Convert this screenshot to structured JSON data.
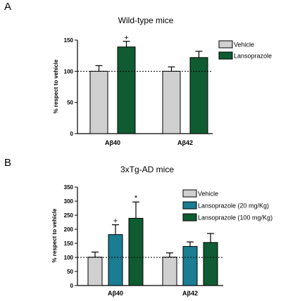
{
  "chart_data": [
    {
      "type": "bar",
      "panel": "A",
      "title": "Wild-type mice",
      "ylabel": "% respect to vehicle",
      "ylim": [
        0,
        150
      ],
      "yticks": [
        0,
        50,
        100,
        150
      ],
      "reference_line": 100,
      "categories": [
        "Aβ40",
        "Aβ42"
      ],
      "series": [
        {
          "name": "Vehicle",
          "color": "#d0d0d0",
          "values": [
            100,
            100
          ],
          "errors": [
            9,
            7
          ],
          "annotations": [
            "",
            ""
          ]
        },
        {
          "name": "Lansoprazole",
          "color": "#0f5c32",
          "values": [
            139,
            122
          ],
          "errors": [
            9,
            10
          ],
          "annotations": [
            "+",
            ""
          ]
        }
      ],
      "legend": "top-right"
    },
    {
      "type": "bar",
      "panel": "B",
      "title": "3xTg-AD mice",
      "ylabel": "% respect to vehicle",
      "ylim": [
        0,
        350
      ],
      "yticks": [
        0,
        50,
        100,
        150,
        200,
        250,
        300,
        350
      ],
      "reference_line": 100,
      "categories": [
        "Aβ40",
        "Aβ42"
      ],
      "series": [
        {
          "name": "Vehicle",
          "color": "#d0d0d0",
          "values": [
            101,
            101
          ],
          "errors": [
            18,
            15
          ],
          "annotations": [
            "",
            ""
          ]
        },
        {
          "name": "Lansoprazole (20 mg/Kg)",
          "color": "#1a7d92",
          "values": [
            181,
            139
          ],
          "errors": [
            35,
            16
          ],
          "annotations": [
            "+",
            ""
          ]
        },
        {
          "name": "Lansoprazole (100 mg/Kg)",
          "color": "#0f5c32",
          "values": [
            239,
            153
          ],
          "errors": [
            58,
            32
          ],
          "annotations": [
            "*",
            ""
          ]
        }
      ],
      "legend": "top-right"
    }
  ]
}
